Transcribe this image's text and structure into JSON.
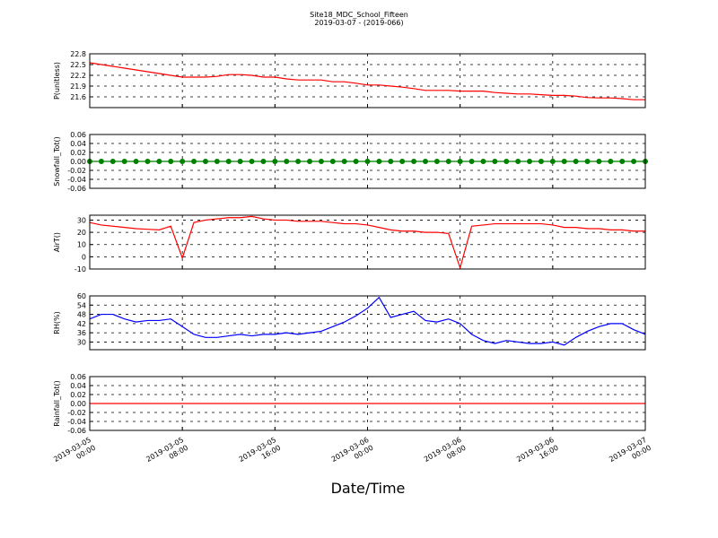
{
  "title": "Site18_MDC_School_Fifteen",
  "subtitle": "2019-03-07 - (2019-066)",
  "x_label": "Date/Time",
  "x": [
    "2019-03-05 00:00",
    "2019-03-05 01:00",
    "2019-03-05 02:00",
    "2019-03-05 03:00",
    "2019-03-05 04:00",
    "2019-03-05 05:00",
    "2019-03-05 06:00",
    "2019-03-05 07:00",
    "2019-03-05 08:00",
    "2019-03-05 09:00",
    "2019-03-05 10:00",
    "2019-03-05 11:00",
    "2019-03-05 12:00",
    "2019-03-05 13:00",
    "2019-03-05 14:00",
    "2019-03-05 15:00",
    "2019-03-05 16:00",
    "2019-03-05 17:00",
    "2019-03-05 18:00",
    "2019-03-05 19:00",
    "2019-03-05 20:00",
    "2019-03-05 21:00",
    "2019-03-05 22:00",
    "2019-03-05 23:00",
    "2019-03-06 00:00",
    "2019-03-06 01:00",
    "2019-03-06 02:00",
    "2019-03-06 03:00",
    "2019-03-06 04:00",
    "2019-03-06 05:00",
    "2019-03-06 06:00",
    "2019-03-06 07:00",
    "2019-03-06 08:00",
    "2019-03-06 09:00",
    "2019-03-06 10:00",
    "2019-03-06 11:00",
    "2019-03-06 12:00",
    "2019-03-06 13:00",
    "2019-03-06 14:00",
    "2019-03-06 15:00",
    "2019-03-06 16:00",
    "2019-03-06 17:00",
    "2019-03-06 18:00",
    "2019-03-06 19:00",
    "2019-03-06 20:00",
    "2019-03-06 21:00",
    "2019-03-06 22:00",
    "2019-03-06 23:00",
    "2019-03-07 00:00"
  ],
  "xlim": [
    "2019-03-05 00:00",
    "2019-03-07 00:00"
  ],
  "xticks": [
    "2019-03-05 00:00",
    "2019-03-05 08:00",
    "2019-03-05 16:00",
    "2019-03-06 00:00",
    "2019-03-06 08:00",
    "2019-03-06 16:00",
    "2019-03-07 00:00"
  ],
  "chart_data": [
    {
      "type": "line",
      "y_label": "P(unitless)",
      "color": "#ff0000",
      "markers": false,
      "grid": true,
      "ylim": [
        21.3,
        22.8
      ],
      "yticks": [
        21.6,
        21.9,
        22.2,
        22.5,
        22.8
      ],
      "values": [
        22.55,
        22.5,
        22.45,
        22.4,
        22.35,
        22.3,
        22.25,
        22.2,
        22.15,
        22.15,
        22.15,
        22.17,
        22.22,
        22.22,
        22.2,
        22.15,
        22.15,
        22.1,
        22.07,
        22.07,
        22.07,
        22.02,
        22.02,
        21.98,
        21.93,
        21.93,
        21.9,
        21.87,
        21.83,
        21.78,
        21.78,
        21.78,
        21.76,
        21.76,
        21.76,
        21.72,
        21.7,
        21.68,
        21.68,
        21.66,
        21.64,
        21.64,
        21.62,
        21.58,
        21.57,
        21.57,
        21.55,
        21.52,
        21.52
      ]
    },
    {
      "type": "line",
      "y_label": "Snowfall_Tot()",
      "color": "#008000",
      "markers": true,
      "grid": true,
      "ylim": [
        -0.06,
        0.06
      ],
      "yticks": [
        -0.06,
        -0.04,
        -0.02,
        {
          "value": 0,
          "label": "0.00"
        },
        0.02,
        0.04,
        0.06
      ],
      "values": [
        0,
        0,
        0,
        0,
        0,
        0,
        0,
        0,
        0,
        0,
        0,
        0,
        0,
        0,
        0,
        0,
        0,
        0,
        0,
        0,
        0,
        0,
        0,
        0,
        0,
        0,
        0,
        0,
        0,
        0,
        0,
        0,
        0,
        0,
        0,
        0,
        0,
        0,
        0,
        0,
        0,
        0,
        0,
        0,
        0,
        0,
        0,
        0,
        0
      ]
    },
    {
      "type": "line",
      "y_label": "AirT()",
      "color": "#ff0000",
      "markers": false,
      "grid": true,
      "ylim": [
        -10,
        34
      ],
      "yticks": [
        -10,
        0,
        10,
        20,
        30
      ],
      "values": [
        28,
        26,
        25,
        24,
        23,
        22.5,
        22,
        25,
        -1,
        28,
        30,
        31,
        32,
        32,
        33,
        31,
        30,
        30,
        29,
        29,
        29,
        28,
        27,
        27,
        26,
        24,
        22,
        21,
        21,
        20,
        20,
        19,
        -9,
        25,
        26,
        27,
        27,
        27,
        27,
        27,
        26,
        24,
        24,
        23,
        23,
        22,
        22,
        21,
        21
      ]
    },
    {
      "type": "line",
      "y_label": "RH(%)",
      "color": "#0000ff",
      "markers": false,
      "grid": true,
      "ylim": [
        25,
        60
      ],
      "yticks": [
        30,
        36,
        42,
        48,
        54,
        60
      ],
      "values": [
        45,
        48,
        48,
        45,
        43,
        44,
        44,
        45,
        40,
        35,
        33,
        33,
        34,
        35,
        34,
        35,
        35,
        36,
        35,
        36,
        37,
        40,
        43,
        47,
        52,
        59,
        46,
        48,
        50,
        44,
        43,
        45,
        42,
        35,
        31,
        29,
        31,
        30,
        29,
        29,
        30,
        28,
        33,
        37,
        40,
        42,
        42,
        38,
        35
      ]
    },
    {
      "type": "line",
      "y_label": "Rainfall_Tot()",
      "color": "#ff0000",
      "markers": false,
      "grid": true,
      "ylim": [
        -0.06,
        0.06
      ],
      "yticks": [
        -0.06,
        -0.04,
        -0.02,
        {
          "value": 0,
          "label": "0.00"
        },
        0.02,
        0.04,
        0.06
      ],
      "values": [
        0,
        0,
        0,
        0,
        0,
        0,
        0,
        0,
        0,
        0,
        0,
        0,
        0,
        0,
        0,
        0,
        0,
        0,
        0,
        0,
        0,
        0,
        0,
        0,
        0,
        0,
        0,
        0,
        0,
        0,
        0,
        0,
        0,
        0,
        0,
        0,
        0,
        0,
        0,
        0,
        0,
        0,
        0,
        0,
        0,
        0,
        0,
        0,
        0
      ]
    }
  ]
}
